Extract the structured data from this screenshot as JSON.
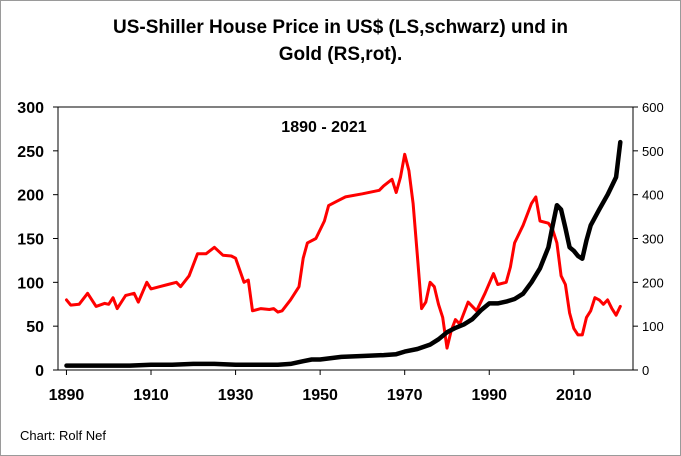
{
  "chart_data": {
    "type": "line",
    "title_lines": [
      "US-Shiller House Price in US$ (LS,schwarz) und in",
      "Gold (RS,rot)."
    ],
    "annotation": "1890 - 2021",
    "credit": "Chart: Rolf Nef",
    "xlim": [
      1888,
      2024
    ],
    "x_ticks": [
      1890,
      1910,
      1930,
      1950,
      1970,
      1990,
      2010
    ],
    "x_tick_labels": [
      "1890",
      "1910",
      "1930",
      "1950",
      "1970",
      "1990",
      "2010"
    ],
    "y_left": {
      "range": [
        0,
        300
      ],
      "ticks": [
        0,
        50,
        100,
        150,
        200,
        250,
        300
      ],
      "tick_labels": [
        "0",
        "50",
        "100",
        "150",
        "200",
        "250",
        "300"
      ]
    },
    "y_right": {
      "range": [
        0,
        600
      ],
      "ticks": [
        0,
        100,
        200,
        300,
        400,
        500,
        600
      ],
      "tick_labels": [
        "0",
        "100",
        "200",
        "300",
        "400",
        "500",
        "600"
      ]
    },
    "series": [
      {
        "name": "US-Shiller House Price in US$",
        "axis": "left",
        "color": "#000000",
        "points": [
          [
            1890,
            5
          ],
          [
            1895,
            5
          ],
          [
            1900,
            5
          ],
          [
            1905,
            5
          ],
          [
            1910,
            6
          ],
          [
            1915,
            6
          ],
          [
            1920,
            7
          ],
          [
            1925,
            7
          ],
          [
            1930,
            6
          ],
          [
            1935,
            6
          ],
          [
            1940,
            6
          ],
          [
            1943,
            7
          ],
          [
            1946,
            10
          ],
          [
            1948,
            12
          ],
          [
            1950,
            12
          ],
          [
            1955,
            15
          ],
          [
            1960,
            16
          ],
          [
            1965,
            17
          ],
          [
            1968,
            18
          ],
          [
            1970,
            21
          ],
          [
            1973,
            24
          ],
          [
            1976,
            29
          ],
          [
            1978,
            35
          ],
          [
            1980,
            43
          ],
          [
            1982,
            48
          ],
          [
            1984,
            52
          ],
          [
            1986,
            58
          ],
          [
            1988,
            68
          ],
          [
            1990,
            76
          ],
          [
            1992,
            76
          ],
          [
            1994,
            78
          ],
          [
            1996,
            81
          ],
          [
            1998,
            87
          ],
          [
            2000,
            100
          ],
          [
            2002,
            116
          ],
          [
            2004,
            140
          ],
          [
            2005,
            165
          ],
          [
            2006,
            188
          ],
          [
            2007,
            183
          ],
          [
            2008,
            162
          ],
          [
            2009,
            140
          ],
          [
            2010,
            136
          ],
          [
            2011,
            130
          ],
          [
            2012,
            127
          ],
          [
            2013,
            148
          ],
          [
            2014,
            165
          ],
          [
            2016,
            183
          ],
          [
            2018,
            200
          ],
          [
            2019,
            210
          ],
          [
            2020,
            220
          ],
          [
            2021,
            260
          ]
        ]
      },
      {
        "name": "House Price in Gold",
        "axis": "right",
        "color": "#ff0000",
        "points": [
          [
            1890,
            160
          ],
          [
            1891,
            148
          ],
          [
            1893,
            150
          ],
          [
            1895,
            175
          ],
          [
            1897,
            145
          ],
          [
            1899,
            152
          ],
          [
            1900,
            150
          ],
          [
            1901,
            165
          ],
          [
            1902,
            140
          ],
          [
            1904,
            170
          ],
          [
            1906,
            175
          ],
          [
            1907,
            155
          ],
          [
            1909,
            200
          ],
          [
            1910,
            185
          ],
          [
            1912,
            190
          ],
          [
            1914,
            195
          ],
          [
            1916,
            200
          ],
          [
            1917,
            190
          ],
          [
            1919,
            215
          ],
          [
            1921,
            265
          ],
          [
            1923,
            265
          ],
          [
            1925,
            280
          ],
          [
            1927,
            262
          ],
          [
            1929,
            260
          ],
          [
            1930,
            255
          ],
          [
            1932,
            200
          ],
          [
            1933,
            205
          ],
          [
            1934,
            135
          ],
          [
            1936,
            140
          ],
          [
            1938,
            138
          ],
          [
            1939,
            140
          ],
          [
            1940,
            132
          ],
          [
            1941,
            135
          ],
          [
            1943,
            160
          ],
          [
            1945,
            190
          ],
          [
            1946,
            255
          ],
          [
            1947,
            290
          ],
          [
            1949,
            300
          ],
          [
            1951,
            340
          ],
          [
            1952,
            375
          ],
          [
            1954,
            385
          ],
          [
            1956,
            395
          ],
          [
            1960,
            402
          ],
          [
            1964,
            410
          ],
          [
            1965,
            420
          ],
          [
            1967,
            435
          ],
          [
            1968,
            405
          ],
          [
            1969,
            440
          ],
          [
            1970,
            492
          ],
          [
            1971,
            455
          ],
          [
            1972,
            380
          ],
          [
            1973,
            260
          ],
          [
            1974,
            140
          ],
          [
            1975,
            155
          ],
          [
            1976,
            200
          ],
          [
            1977,
            190
          ],
          [
            1978,
            150
          ],
          [
            1979,
            120
          ],
          [
            1980,
            50
          ],
          [
            1981,
            90
          ],
          [
            1982,
            115
          ],
          [
            1983,
            105
          ],
          [
            1985,
            155
          ],
          [
            1987,
            135
          ],
          [
            1989,
            175
          ],
          [
            1991,
            220
          ],
          [
            1992,
            195
          ],
          [
            1994,
            200
          ],
          [
            1995,
            235
          ],
          [
            1996,
            290
          ],
          [
            1998,
            330
          ],
          [
            2000,
            380
          ],
          [
            2001,
            395
          ],
          [
            2002,
            340
          ],
          [
            2004,
            335
          ],
          [
            2005,
            320
          ],
          [
            2006,
            290
          ],
          [
            2007,
            215
          ],
          [
            2008,
            195
          ],
          [
            2009,
            130
          ],
          [
            2010,
            95
          ],
          [
            2011,
            80
          ],
          [
            2012,
            80
          ],
          [
            2013,
            120
          ],
          [
            2014,
            135
          ],
          [
            2015,
            165
          ],
          [
            2016,
            160
          ],
          [
            2017,
            150
          ],
          [
            2018,
            160
          ],
          [
            2019,
            140
          ],
          [
            2020,
            125
          ],
          [
            2021,
            145
          ]
        ]
      }
    ]
  }
}
